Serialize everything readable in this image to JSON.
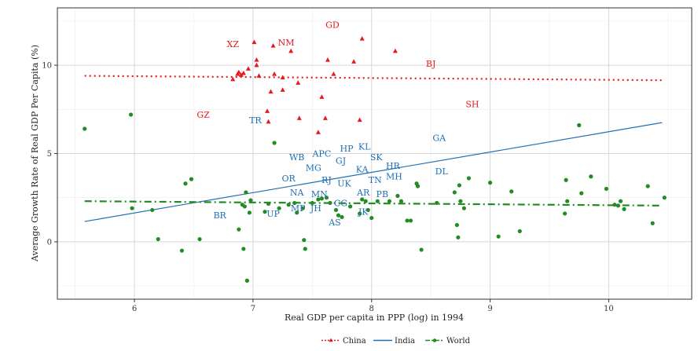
{
  "chart_data": {
    "type": "scatter",
    "xlabel": "Real GDP per capita in PPP (log) in 1994",
    "ylabel": "Average Growth Rate of Real GDP Per Capita (%)",
    "xlim": [
      5.35,
      10.7
    ],
    "ylim": [
      -3.25,
      13.25
    ],
    "x_ticks": [
      "6",
      "7",
      "8",
      "9",
      "10"
    ],
    "y_ticks": [
      "0",
      "5",
      "10"
    ],
    "x_tick_values": [
      6,
      7,
      8,
      9,
      10
    ],
    "y_tick_values": [
      0,
      5,
      10
    ],
    "grid": true,
    "legend_position": "bottom",
    "colors": {
      "China": "#e41a1c",
      "India": "#1f6fb4",
      "World": "#228b22"
    },
    "series": [
      {
        "name": "China",
        "marker": "triangle",
        "points": [
          [
            6.83,
            9.2
          ],
          [
            6.87,
            9.5
          ],
          [
            6.88,
            9.6
          ],
          [
            6.9,
            9.45
          ],
          [
            6.92,
            9.55
          ],
          [
            6.96,
            9.8
          ],
          [
            7.01,
            11.3
          ],
          [
            7.03,
            10.0
          ],
          [
            7.03,
            10.3
          ],
          [
            7.05,
            9.4
          ],
          [
            7.12,
            7.4
          ],
          [
            7.13,
            6.8
          ],
          [
            7.15,
            8.5
          ],
          [
            7.17,
            11.1
          ],
          [
            7.18,
            9.5
          ],
          [
            7.25,
            9.3
          ],
          [
            7.25,
            8.6
          ],
          [
            7.32,
            10.8
          ],
          [
            7.38,
            9.0
          ],
          [
            7.39,
            7.0
          ],
          [
            7.55,
            6.2
          ],
          [
            7.58,
            8.2
          ],
          [
            7.61,
            7.0
          ],
          [
            7.63,
            10.3
          ],
          [
            7.68,
            9.5
          ],
          [
            7.85,
            10.2
          ],
          [
            7.9,
            6.9
          ],
          [
            7.92,
            11.5
          ],
          [
            8.2,
            10.8
          ]
        ],
        "labels": [
          {
            "text": "XZ",
            "x": 6.83,
            "y": 11.2
          },
          {
            "text": "NM",
            "x": 7.28,
            "y": 11.3
          },
          {
            "text": "GD",
            "x": 7.67,
            "y": 12.3
          },
          {
            "text": "BJ",
            "x": 8.5,
            "y": 10.1
          },
          {
            "text": "GZ",
            "x": 6.58,
            "y": 7.2
          },
          {
            "text": "SH",
            "x": 8.85,
            "y": 7.8
          }
        ],
        "trend": {
          "style": "dotted",
          "points": [
            [
              5.58,
              9.4
            ],
            [
              10.45,
              9.15
            ]
          ]
        }
      },
      {
        "name": "India",
        "marker": "none",
        "labels": [
          {
            "text": "TR",
            "x": 7.02,
            "y": 6.9
          },
          {
            "text": "GA",
            "x": 8.57,
            "y": 5.9
          },
          {
            "text": "KL",
            "x": 7.94,
            "y": 5.4
          },
          {
            "text": "HP",
            "x": 7.79,
            "y": 5.3
          },
          {
            "text": "APC",
            "x": 7.58,
            "y": 5.0
          },
          {
            "text": "WB",
            "x": 7.37,
            "y": 4.8
          },
          {
            "text": "SK",
            "x": 8.04,
            "y": 4.8
          },
          {
            "text": "GJ",
            "x": 7.74,
            "y": 4.6
          },
          {
            "text": "HR",
            "x": 8.18,
            "y": 4.3
          },
          {
            "text": "MG",
            "x": 7.51,
            "y": 4.2
          },
          {
            "text": "KA",
            "x": 7.92,
            "y": 4.1
          },
          {
            "text": "DL",
            "x": 8.59,
            "y": 4.0
          },
          {
            "text": "MH",
            "x": 8.19,
            "y": 3.7
          },
          {
            "text": "OR",
            "x": 7.3,
            "y": 3.6
          },
          {
            "text": "TN",
            "x": 8.03,
            "y": 3.5
          },
          {
            "text": "RJ",
            "x": 7.62,
            "y": 3.5
          },
          {
            "text": "UK",
            "x": 7.77,
            "y": 3.3
          },
          {
            "text": "NA",
            "x": 7.37,
            "y": 2.8
          },
          {
            "text": "MN",
            "x": 7.56,
            "y": 2.7
          },
          {
            "text": "AR",
            "x": 7.93,
            "y": 2.8
          },
          {
            "text": "PB",
            "x": 8.09,
            "y": 2.7
          },
          {
            "text": "CG",
            "x": 7.74,
            "y": 2.2
          },
          {
            "text": "MP",
            "x": 7.38,
            "y": 1.9
          },
          {
            "text": "JH",
            "x": 7.53,
            "y": 1.9
          },
          {
            "text": "JK",
            "x": 7.93,
            "y": 1.7
          },
          {
            "text": "UP",
            "x": 7.17,
            "y": 1.6
          },
          {
            "text": "BR",
            "x": 6.72,
            "y": 1.5
          },
          {
            "text": "AS",
            "x": 7.69,
            "y": 1.1
          }
        ],
        "trend": {
          "style": "solid",
          "points": [
            [
              5.58,
              1.15
            ],
            [
              10.45,
              6.75
            ]
          ]
        }
      },
      {
        "name": "World",
        "marker": "circle",
        "points": [
          [
            5.58,
            6.4
          ],
          [
            5.97,
            7.2
          ],
          [
            5.98,
            1.9
          ],
          [
            6.15,
            1.8
          ],
          [
            6.2,
            0.15
          ],
          [
            6.4,
            -0.5
          ],
          [
            6.43,
            3.3
          ],
          [
            6.48,
            3.55
          ],
          [
            6.55,
            0.15
          ],
          [
            6.88,
            0.7
          ],
          [
            6.91,
            2.1
          ],
          [
            6.92,
            -0.4
          ],
          [
            6.93,
            2.0
          ],
          [
            6.94,
            2.8
          ],
          [
            6.95,
            -2.2
          ],
          [
            6.97,
            1.65
          ],
          [
            6.98,
            2.35
          ],
          [
            7.1,
            1.7
          ],
          [
            7.13,
            2.15
          ],
          [
            7.18,
            5.6
          ],
          [
            7.22,
            1.9
          ],
          [
            7.3,
            2.1
          ],
          [
            7.35,
            2.2
          ],
          [
            7.37,
            1.65
          ],
          [
            7.42,
            1.9
          ],
          [
            7.43,
            0.1
          ],
          [
            7.44,
            -0.4
          ],
          [
            7.5,
            2.2
          ],
          [
            7.55,
            2.4
          ],
          [
            7.58,
            2.45
          ],
          [
            7.62,
            2.5
          ],
          [
            7.65,
            2.2
          ],
          [
            7.7,
            1.8
          ],
          [
            7.72,
            1.5
          ],
          [
            7.75,
            1.4
          ],
          [
            7.82,
            2.0
          ],
          [
            7.9,
            1.6
          ],
          [
            7.92,
            2.4
          ],
          [
            7.95,
            2.3
          ],
          [
            7.97,
            1.8
          ],
          [
            8.0,
            1.35
          ],
          [
            8.05,
            2.3
          ],
          [
            8.15,
            2.3
          ],
          [
            8.22,
            2.6
          ],
          [
            8.25,
            2.3
          ],
          [
            8.3,
            1.2
          ],
          [
            8.33,
            1.2
          ],
          [
            8.38,
            3.3
          ],
          [
            8.39,
            3.15
          ],
          [
            8.42,
            -0.45
          ],
          [
            8.55,
            2.2
          ],
          [
            8.7,
            2.8
          ],
          [
            8.72,
            0.95
          ],
          [
            8.73,
            0.25
          ],
          [
            8.74,
            3.2
          ],
          [
            8.75,
            2.3
          ],
          [
            8.78,
            1.9
          ],
          [
            8.82,
            3.6
          ],
          [
            9.0,
            3.35
          ],
          [
            9.07,
            0.3
          ],
          [
            9.18,
            2.85
          ],
          [
            9.25,
            0.6
          ],
          [
            9.63,
            1.6
          ],
          [
            9.64,
            3.5
          ],
          [
            9.65,
            2.3
          ],
          [
            9.75,
            6.6
          ],
          [
            9.77,
            2.75
          ],
          [
            9.85,
            3.7
          ],
          [
            9.98,
            3.0
          ],
          [
            10.05,
            2.1
          ],
          [
            10.08,
            2.05
          ],
          [
            10.1,
            2.3
          ],
          [
            10.13,
            1.85
          ],
          [
            10.33,
            3.15
          ],
          [
            10.37,
            1.05
          ],
          [
            10.47,
            2.5
          ]
        ],
        "trend": {
          "style": "dashdot",
          "points": [
            [
              5.58,
              2.3
            ],
            [
              10.45,
              2.05
            ]
          ]
        }
      }
    ]
  },
  "legend": {
    "items": [
      {
        "label": "China",
        "color": "#e41a1c",
        "style": "dotted"
      },
      {
        "label": "India",
        "color": "#1f6fb4",
        "style": "solid"
      },
      {
        "label": "World",
        "color": "#228b22",
        "style": "dashdot"
      }
    ]
  }
}
